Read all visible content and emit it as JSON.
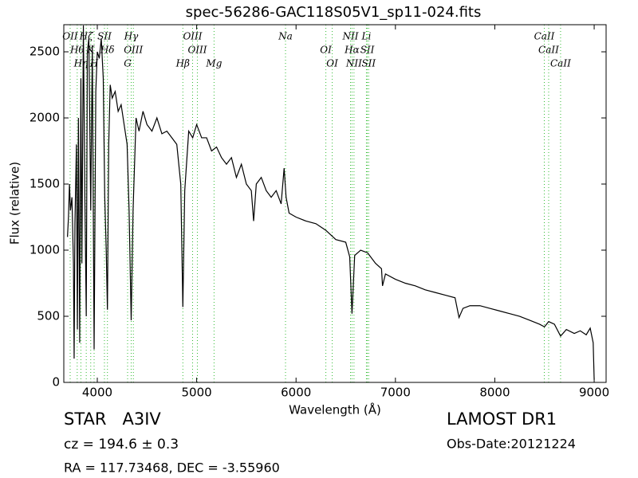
{
  "chart_data": {
    "type": "line",
    "title": "spec-56286-GAC118S05V1_sp11-024.fits",
    "x_label": "Wavelength (Å)",
    "y_label": "Flux (relative)",
    "color": "#000000",
    "line_color": "#33bb33",
    "xlim": [
      3663,
      9120
    ],
    "ylim": [
      0,
      2705
    ],
    "xticks": [
      4000,
      5000,
      6000,
      7000,
      8000,
      9000
    ],
    "yticks": [
      0,
      500,
      1000,
      1500,
      2000,
      2500
    ],
    "x": [
      3700,
      3710,
      3720,
      3730,
      3745,
      3760,
      3767,
      3775,
      3790,
      3800,
      3810,
      3823,
      3835,
      3845,
      3860,
      3875,
      3889,
      3900,
      3915,
      3934,
      3950,
      3968,
      3985,
      4000,
      4020,
      4040,
      4060,
      4075,
      4090,
      4102,
      4115,
      4130,
      4150,
      4180,
      4210,
      4240,
      4270,
      4300,
      4320,
      4341,
      4360,
      4390,
      4420,
      4460,
      4500,
      4550,
      4600,
      4650,
      4700,
      4750,
      4800,
      4840,
      4861,
      4880,
      4920,
      4960,
      5000,
      5050,
      5100,
      5150,
      5200,
      5250,
      5300,
      5350,
      5400,
      5450,
      5500,
      5550,
      5573,
      5600,
      5650,
      5700,
      5750,
      5800,
      5850,
      5880,
      5900,
      5930,
      6000,
      6100,
      6200,
      6300,
      6400,
      6500,
      6540,
      6563,
      6590,
      6650,
      6720,
      6800,
      6860,
      6870,
      6900,
      7000,
      7100,
      7200,
      7300,
      7400,
      7500,
      7600,
      7640,
      7680,
      7750,
      7850,
      7950,
      8050,
      8150,
      8250,
      8350,
      8450,
      8500,
      8542,
      8600,
      8662,
      8720,
      8800,
      8860,
      8920,
      8960,
      8990,
      9000
    ],
    "values": [
      1100,
      1250,
      1500,
      1300,
      1400,
      900,
      180,
      1200,
      1800,
      400,
      2000,
      300,
      2300,
      900,
      2700,
      1400,
      500,
      2500,
      2600,
      1300,
      2550,
      250,
      2200,
      2500,
      2450,
      2600,
      2300,
      1400,
      1000,
      550,
      1800,
      2250,
      2150,
      2200,
      2050,
      2100,
      1950,
      1800,
      1300,
      470,
      1300,
      2000,
      1900,
      2050,
      1950,
      1900,
      2000,
      1880,
      1900,
      1850,
      1800,
      1500,
      570,
      1450,
      1900,
      1850,
      1950,
      1850,
      1850,
      1750,
      1780,
      1700,
      1650,
      1700,
      1550,
      1650,
      1500,
      1450,
      1220,
      1500,
      1550,
      1450,
      1400,
      1450,
      1350,
      1620,
      1400,
      1280,
      1250,
      1220,
      1200,
      1150,
      1080,
      1060,
      950,
      520,
      960,
      1000,
      980,
      900,
      860,
      730,
      820,
      780,
      750,
      730,
      700,
      680,
      660,
      640,
      490,
      560,
      580,
      580,
      560,
      540,
      520,
      500,
      470,
      440,
      420,
      460,
      440,
      350,
      400,
      370,
      390,
      360,
      410,
      300,
      20
    ],
    "lines": [
      {
        "x": 3727,
        "label": "OII"
      },
      {
        "x": 3798,
        "label": "Hθ"
      },
      {
        "x": 3835,
        "label": "Hη"
      },
      {
        "x": 3889,
        "label": "Hζ"
      },
      {
        "x": 3934,
        "label": "K"
      },
      {
        "x": 3968,
        "label": "H"
      },
      {
        "x": 4072,
        "label": "SII"
      },
      {
        "x": 4102,
        "label": "Hδ"
      },
      {
        "x": 4305,
        "label": "G"
      },
      {
        "x": 4341,
        "label": "Hγ"
      },
      {
        "x": 4363,
        "label": "OIII"
      },
      {
        "x": 4861,
        "label": "Hβ"
      },
      {
        "x": 4959,
        "label": "OIII"
      },
      {
        "x": 5007,
        "label": "OIII"
      },
      {
        "x": 5175,
        "label": "Mg"
      },
      {
        "x": 5894,
        "label": "Na"
      },
      {
        "x": 6300,
        "label": "OI"
      },
      {
        "x": 6364,
        "label": "OI"
      },
      {
        "x": 6548,
        "label": "NII"
      },
      {
        "x": 6563,
        "label": "Hα"
      },
      {
        "x": 6583,
        "label": "NII"
      },
      {
        "x": 6708,
        "label": "Li"
      },
      {
        "x": 6717,
        "label": "SII"
      },
      {
        "x": 6731,
        "label": "SII"
      },
      {
        "x": 8498,
        "label": "CaII"
      },
      {
        "x": 8542,
        "label": "CaII"
      },
      {
        "x": 8662,
        "label": "CaII"
      }
    ],
    "object_class": "STAR   A3IV",
    "redshift": "cz = 194.6 ± 0.3",
    "coordinates": "RA = 117.73468, DEC = -3.55960",
    "survey": "LAMOST DR1",
    "obs_date": "Obs-Date:20121224"
  }
}
